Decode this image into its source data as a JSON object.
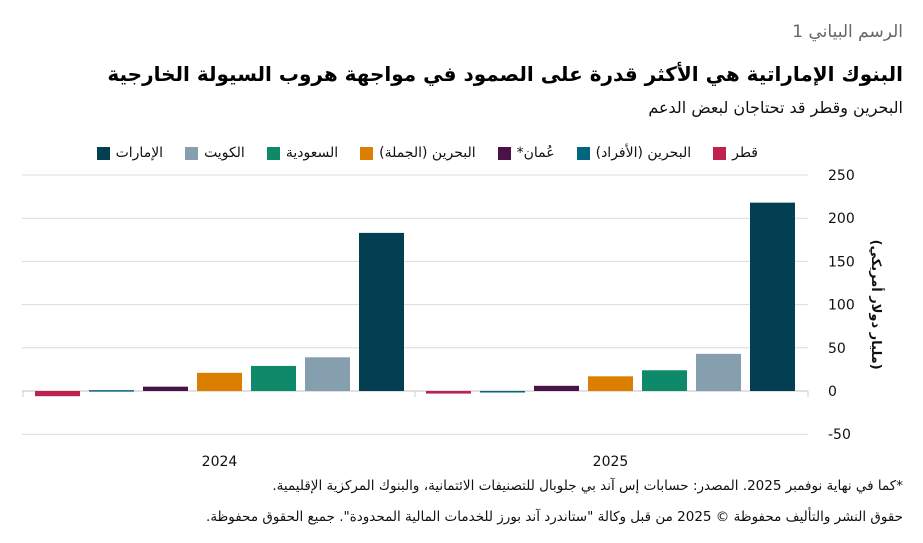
{
  "header": {
    "eyebrow": "الرسم البياني 1",
    "title": "البنوك الإماراتية هي الأكثر قدرة على الصمود في مواجهة هروب السيولة الخارجية",
    "subtitle": "البحرين وقطر قد تحتاجان لبعض الدعم"
  },
  "footer": {
    "footnote": "*كما في نهاية نوفمبر 2025. المصدر: حسابات إس آند بي جلوبال للتصنيفات الائتمانية، والبنوك المركزية الإقليمية.",
    "copyright": "حقوق النشر والتأليف محفوظة © 2025 من قبل وكالة \"ستاندرد آند بورز للخدمات المالية المحدودة\". جميع الحقوق محفوظة."
  },
  "chart_data": {
    "type": "bar",
    "title": "البنوك الإماراتية هي الأكثر قدرة على الصمود في مواجهة هروب السيولة الخارجية",
    "subtitle": "البحرين وقطر قد تحتاجان لبعض الدعم",
    "xlabel": "",
    "ylabel": "(مليار دولار أمريكي)",
    "categories": [
      "2024",
      "2025"
    ],
    "ylim": [
      -50,
      250
    ],
    "yticks": [
      250,
      200,
      150,
      100,
      50,
      0,
      -50
    ],
    "grid": true,
    "y_axis_position": "right",
    "legend_position": "top",
    "series": [
      {
        "name": "قطر",
        "color": "#C0214F",
        "values": [
          -6,
          -3
        ]
      },
      {
        "name": "البحرين (الأفراد)",
        "color": "#00677F",
        "values": [
          1,
          -1
        ]
      },
      {
        "name": "عُمان*",
        "color": "#4A1248",
        "values": [
          5,
          6
        ]
      },
      {
        "name": "البحرين (الجملة)",
        "color": "#DC7E00",
        "values": [
          21,
          17
        ]
      },
      {
        "name": "السعودية",
        "color": "#0E8A6B",
        "values": [
          29,
          24
        ]
      },
      {
        "name": "الكويت",
        "color": "#869FAE",
        "values": [
          39,
          43
        ]
      },
      {
        "name": "الإمارات",
        "color": "#023F51",
        "values": [
          183,
          218
        ]
      }
    ]
  }
}
